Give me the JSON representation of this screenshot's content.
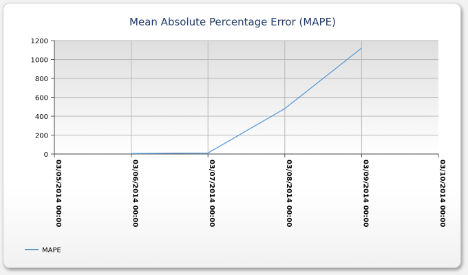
{
  "chart_data": {
    "type": "line",
    "title": "Mean Absolute Percentage Error (MAPE)",
    "x": [
      "03/05/2014 00:00",
      "03/06/2014 00:00",
      "03/07/2014 00:00",
      "03/08/2014 00:00",
      "03/09/2014 00:00",
      "03/10/2014 00:00"
    ],
    "ylim": [
      0,
      1200
    ],
    "yticks": [
      0,
      200,
      400,
      600,
      800,
      1000,
      1200
    ],
    "grid": true,
    "legend_position": "bottom-left",
    "series": [
      {
        "name": "MAPE",
        "color": "#5b9bd5",
        "points": [
          {
            "x": "03/06/2014 00:00",
            "y": 5
          },
          {
            "x": "03/07/2014 00:00",
            "y": 10
          },
          {
            "x": "03/08/2014 00:00",
            "y": 480
          },
          {
            "x": "03/09/2014 00:00",
            "y": 1120
          }
        ]
      }
    ]
  }
}
